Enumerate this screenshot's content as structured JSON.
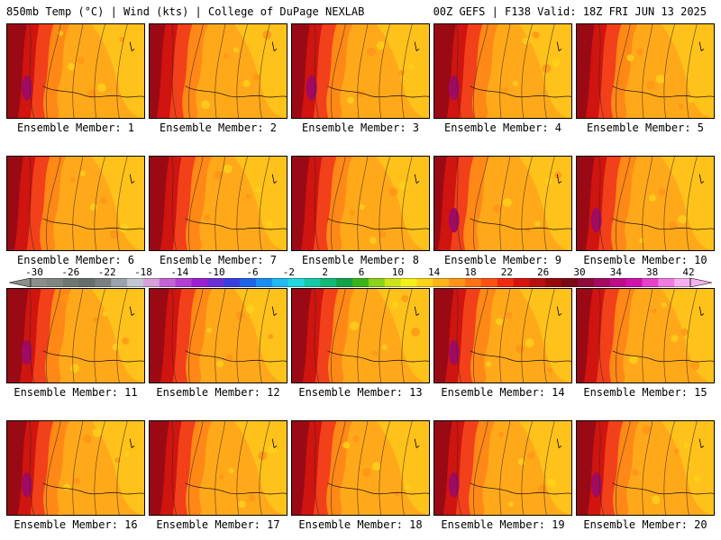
{
  "header": {
    "left": "850mb Temp (°C) | Wind (kts) | College of DuPage NEXLAB",
    "right": "00Z GEFS | F138 Valid: 18Z FRI JUN 13 2025"
  },
  "colorbar": {
    "tick_labels": [
      "-30",
      "-26",
      "-22",
      "-18",
      "-14",
      "-10",
      "-6",
      "-2",
      "2",
      "6",
      "10",
      "14",
      "18",
      "22",
      "26",
      "30",
      "34",
      "38",
      "42"
    ],
    "colors": [
      "#8a8f8a",
      "#7f867f",
      "#6f7771",
      "#666e69",
      "#7a7f80",
      "#9aa2ad",
      "#c2c8d2",
      "#d6a0d8",
      "#c462d6",
      "#b23fd6",
      "#9a20d2",
      "#6b2fd6",
      "#3b3fe0",
      "#1f63e6",
      "#1a8ef0",
      "#20b9f2",
      "#22d8df",
      "#17c9a8",
      "#14b877",
      "#13a24a",
      "#3cb318",
      "#8bd21a",
      "#cde41b",
      "#f5ef1a",
      "#ffd21a",
      "#ffb31a",
      "#ff9417",
      "#ff7314",
      "#ff5212",
      "#f22a10",
      "#d8140f",
      "#b8100e",
      "#98090d",
      "#7a0a16",
      "#8e0a3a",
      "#a40a62",
      "#be0b8a",
      "#d212ad",
      "#e541cb",
      "#f07ce0",
      "#f5b1ee"
    ]
  },
  "members": [
    {
      "label": "Ensemble Member: 1",
      "warm": 0.55,
      "purple": true
    },
    {
      "label": "Ensemble Member: 2",
      "warm": 0.45,
      "purple": false
    },
    {
      "label": "Ensemble Member: 3",
      "warm": 0.5,
      "purple": true
    },
    {
      "label": "Ensemble Member: 4",
      "warm": 0.6,
      "purple": true
    },
    {
      "label": "Ensemble Member: 5",
      "warm": 0.5,
      "purple": false
    },
    {
      "label": "Ensemble Member: 6",
      "warm": 0.45,
      "purple": false
    },
    {
      "label": "Ensemble Member: 7",
      "warm": 0.55,
      "purple": false
    },
    {
      "label": "Ensemble Member: 8",
      "warm": 0.5,
      "purple": false
    },
    {
      "label": "Ensemble Member: 9",
      "warm": 0.35,
      "purple": true
    },
    {
      "label": "Ensemble Member: 10",
      "warm": 0.5,
      "purple": true
    },
    {
      "label": "Ensemble Member: 11",
      "warm": 0.6,
      "purple": true
    },
    {
      "label": "Ensemble Member: 12",
      "warm": 0.55,
      "purple": false
    },
    {
      "label": "Ensemble Member: 13",
      "warm": 0.55,
      "purple": false
    },
    {
      "label": "Ensemble Member: 14",
      "warm": 0.55,
      "purple": true
    },
    {
      "label": "Ensemble Member: 15",
      "warm": 0.45,
      "purple": false
    },
    {
      "label": "Ensemble Member: 16",
      "warm": 0.55,
      "purple": true
    },
    {
      "label": "Ensemble Member: 17",
      "warm": 0.55,
      "purple": false
    },
    {
      "label": "Ensemble Member: 18",
      "warm": 0.5,
      "purple": false
    },
    {
      "label": "Ensemble Member: 19",
      "warm": 0.5,
      "purple": true
    },
    {
      "label": "Ensemble Member: 20",
      "warm": 0.55,
      "purple": true
    }
  ]
}
